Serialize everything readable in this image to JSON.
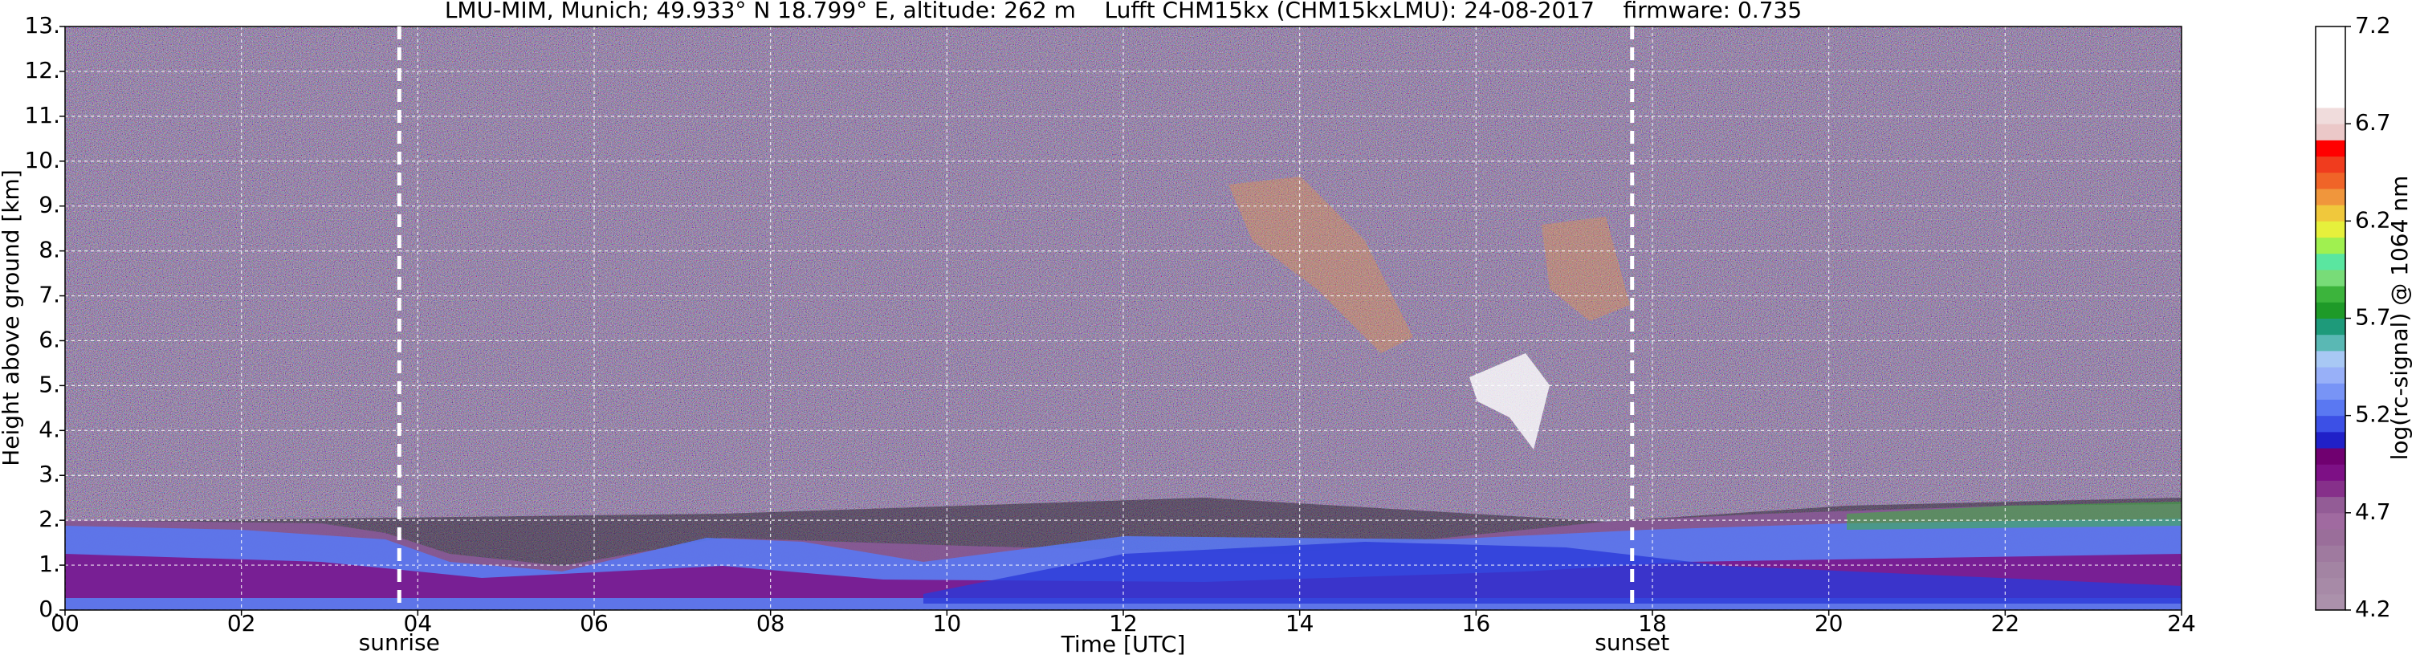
{
  "chart_data": {
    "type": "heatmap",
    "title": "LMU-MIM, Munich; 49.933° N 18.799° E, altitude: 262 m    Lufft CHM15kx (CHM15kxLMU): 24-08-2017    firmware: 0.735",
    "xlabel": "Time [UTC]",
    "ylabel": "Height above ground [km]",
    "xlim": [
      0,
      24
    ],
    "xticks": [
      {
        "value": 0,
        "label": "00"
      },
      {
        "value": 2,
        "label": "02"
      },
      {
        "value": 4,
        "label": "04"
      },
      {
        "value": 6,
        "label": "06"
      },
      {
        "value": 8,
        "label": "08"
      },
      10,
      12,
      14,
      16,
      18,
      20,
      22,
      24
    ],
    "ylim": [
      0,
      13
    ],
    "yticks": [
      {
        "value": 0,
        "label": "0."
      },
      {
        "value": 1,
        "label": "1."
      },
      {
        "value": 2,
        "label": "2."
      },
      {
        "value": 3,
        "label": "3."
      },
      {
        "value": 4,
        "label": "4."
      },
      {
        "value": 5,
        "label": "5."
      },
      {
        "value": 6,
        "label": "6."
      },
      {
        "value": 7,
        "label": "7."
      },
      {
        "value": 8,
        "label": "8."
      },
      {
        "value": 9,
        "label": "9."
      },
      {
        "value": 10,
        "label": "10."
      },
      {
        "value": 11,
        "label": "11."
      },
      {
        "value": 12,
        "label": "12."
      },
      {
        "value": 13,
        "label": "13."
      }
    ],
    "grid": true,
    "annotations": [
      {
        "label": "sunrise",
        "x": 3.79
      },
      {
        "label": "sunset",
        "x": 17.77
      }
    ],
    "colorbar": {
      "label": "log(rc-signal) @ 1064 nm",
      "zlim": [
        4.2,
        7.2
      ],
      "zticks": [
        4.2,
        4.7,
        5.2,
        5.7,
        6.2,
        6.7,
        7.2
      ],
      "colors": [
        "#ab91ab",
        "#a78aa7",
        "#a384a3",
        "#9f7a9f",
        "#9a6e9a",
        "#a06aa0",
        "#935c96",
        "#86308a",
        "#7d1085",
        "#700070",
        "#2020c8",
        "#3c50e6",
        "#5a78f2",
        "#7894f6",
        "#98b0f8",
        "#a8c8f4",
        "#5ab8b4",
        "#1e9a7a",
        "#1e9a28",
        "#3cb43c",
        "#78dc78",
        "#5ae6a0",
        "#a0f050",
        "#e6f03c",
        "#f0c83c",
        "#f0963c",
        "#f06428",
        "#f03c1e",
        "#ff0000",
        "#ebc8c8",
        "#f0dcdc",
        "#ffffff",
        "#ffffff",
        "#ffffff",
        "#ffffff",
        "#ffffff"
      ]
    }
  }
}
